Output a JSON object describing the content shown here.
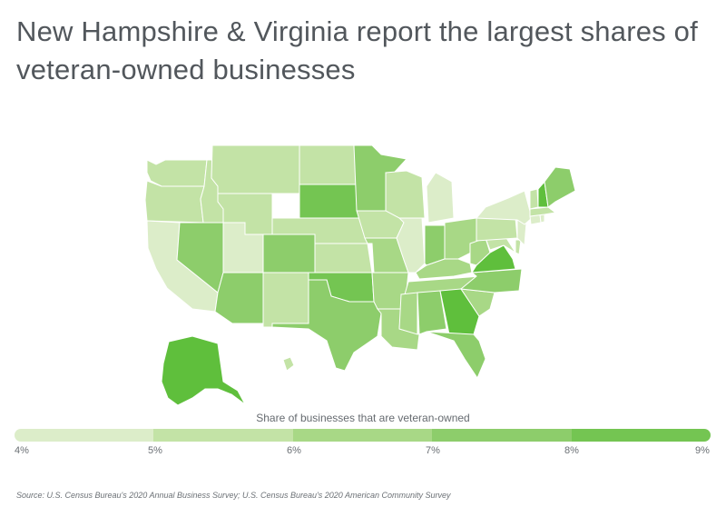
{
  "title": "New Hampshire & Virginia report the largest shares of veteran-owned businesses",
  "legend": {
    "title": "Share of businesses that are veteran-owned",
    "ticks": [
      "4%",
      "5%",
      "6%",
      "7%",
      "8%",
      "9%"
    ],
    "colors": [
      "#dcedc9",
      "#c3e3a6",
      "#a8d886",
      "#8dcd6b",
      "#74c552",
      "#5fbf3c"
    ]
  },
  "source": "Source: U.S. Census Bureau's 2020 Annual Business Survey; U.S. Census Bureau's 2020 American Community Survey",
  "map_data": {
    "type": "choropleth",
    "region": "United States",
    "states": [
      {
        "name": "New Hampshire",
        "bin": 5
      },
      {
        "name": "Virginia",
        "bin": 5
      },
      {
        "name": "Georgia",
        "bin": 5
      },
      {
        "name": "Alaska",
        "bin": 5
      },
      {
        "name": "South Dakota",
        "bin": 4
      },
      {
        "name": "Oklahoma",
        "bin": 4
      },
      {
        "name": "Maine",
        "bin": 3
      },
      {
        "name": "Nevada",
        "bin": 3
      },
      {
        "name": "Arizona",
        "bin": 3
      },
      {
        "name": "Colorado",
        "bin": 3
      },
      {
        "name": "Minnesota",
        "bin": 3
      },
      {
        "name": "Texas",
        "bin": 3
      },
      {
        "name": "Alabama",
        "bin": 3
      },
      {
        "name": "Florida",
        "bin": 3
      },
      {
        "name": "North Carolina",
        "bin": 3
      },
      {
        "name": "Indiana",
        "bin": 3
      },
      {
        "name": "Arkansas",
        "bin": 2
      },
      {
        "name": "Missouri",
        "bin": 2
      },
      {
        "name": "Kentucky",
        "bin": 2
      },
      {
        "name": "Tennessee",
        "bin": 2
      },
      {
        "name": "Mississippi",
        "bin": 2
      },
      {
        "name": "Louisiana",
        "bin": 2
      },
      {
        "name": "South Carolina",
        "bin": 2
      },
      {
        "name": "Ohio",
        "bin": 2
      },
      {
        "name": "West Virginia",
        "bin": 2
      },
      {
        "name": "Idaho",
        "bin": 1
      },
      {
        "name": "Montana",
        "bin": 1
      },
      {
        "name": "Wyoming",
        "bin": 1
      },
      {
        "name": "North Dakota",
        "bin": 1
      },
      {
        "name": "Nebraska",
        "bin": 1
      },
      {
        "name": "Kansas",
        "bin": 1
      },
      {
        "name": "Iowa",
        "bin": 1
      },
      {
        "name": "Wisconsin",
        "bin": 1
      },
      {
        "name": "Washington",
        "bin": 1
      },
      {
        "name": "Oregon",
        "bin": 1
      },
      {
        "name": "New Mexico",
        "bin": 1
      },
      {
        "name": "Pennsylvania",
        "bin": 1
      },
      {
        "name": "Hawaii",
        "bin": 1
      },
      {
        "name": "Maryland",
        "bin": 1
      },
      {
        "name": "Delaware",
        "bin": 1
      },
      {
        "name": "Vermont",
        "bin": 1
      },
      {
        "name": "California",
        "bin": 0
      },
      {
        "name": "Utah",
        "bin": 0
      },
      {
        "name": "Illinois",
        "bin": 0
      },
      {
        "name": "Michigan",
        "bin": 0
      },
      {
        "name": "New York",
        "bin": 0
      },
      {
        "name": "New Jersey",
        "bin": 0
      },
      {
        "name": "Massachusetts",
        "bin": 1
      },
      {
        "name": "Connecticut",
        "bin": 0
      },
      {
        "name": "Rhode Island",
        "bin": 0
      }
    ]
  }
}
